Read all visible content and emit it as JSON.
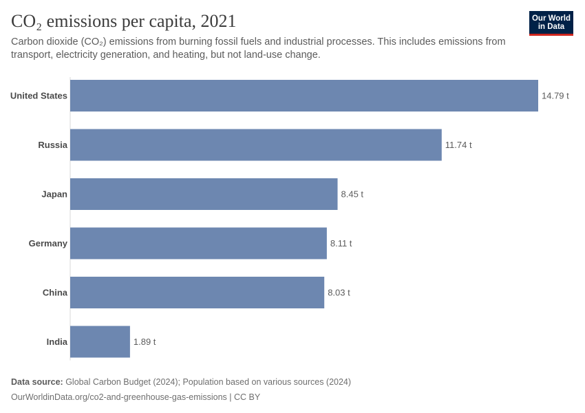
{
  "header": {
    "title": "CO₂ emissions per capita, 2021",
    "subtitle": "Carbon dioxide (CO₂) emissions from burning fossil fuels and industrial processes. This includes emissions from transport, electricity generation, and heating, but not land-use change."
  },
  "logo": {
    "line1": "Our World",
    "line2": "in Data",
    "bg_color": "#002147",
    "accent_color": "#ce261e"
  },
  "footer": {
    "source_label": "Data source:",
    "source_text": " Global Carbon Budget (2024); Population based on various sources (2024)",
    "url_line": "OurWorldinData.org/co2-and-greenhouse-gas-emissions | CC BY"
  },
  "chart_data": {
    "type": "bar",
    "orientation": "horizontal",
    "categories": [
      "United States",
      "Russia",
      "Japan",
      "Germany",
      "China",
      "India"
    ],
    "values": [
      14.79,
      11.74,
      8.45,
      8.11,
      8.03,
      1.89
    ],
    "value_labels": [
      "14.79 t",
      "11.74 t",
      "8.45 t",
      "8.11 t",
      "8.03 t",
      "1.89 t"
    ],
    "unit": "t",
    "bar_color": "#6d87b0",
    "xlim": [
      0,
      14.79
    ]
  }
}
